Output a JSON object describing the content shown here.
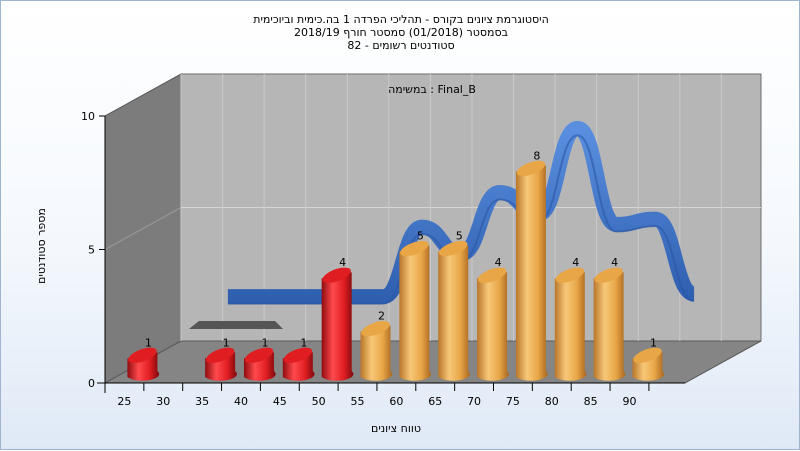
{
  "title_lines": [
    "היסטוגרמת ציונים בקורס - תהליכי הפרדה 1 בה.כימית וביוכימית",
    "בסמסטר  (01/2018)  סמסטר חורף 2018/19",
    "סטודנטים רשומים - 82"
  ],
  "chart_data": {
    "type": "bar",
    "inner_label": "במשימה : Final_B",
    "xlabel": "טווח ציונים",
    "ylabel": "מספר סטודנטים",
    "x_ticks": [
      "25",
      "30",
      "35",
      "40",
      "45",
      "50",
      "55",
      "60",
      "65",
      "70",
      "75",
      "80",
      "85",
      "90"
    ],
    "y_ticks": [
      "0",
      "5",
      "10"
    ],
    "ylim": [
      0,
      10
    ],
    "grid": true,
    "categories": [
      "25",
      "30",
      "35",
      "40",
      "45",
      "50",
      "55",
      "60",
      "65",
      "70",
      "75",
      "80",
      "85",
      "90"
    ],
    "values": [
      1,
      0,
      1,
      1,
      1,
      4,
      2,
      5,
      5,
      4,
      8,
      4,
      4,
      1
    ],
    "value_labels": [
      "1",
      "",
      "1",
      "1",
      "1",
      "4",
      "2",
      "5",
      "5",
      "4",
      "8",
      "4",
      "4",
      "1"
    ],
    "colors": {
      "fail_bar": "#e01e22",
      "pass_bar": "#e8a647",
      "distribution_curve": "#3a6fc4",
      "back_wall": "#b6b6b6",
      "side_wall": "#7c7c7c",
      "floor": "#858585"
    },
    "pass_threshold": "55",
    "curve_values": [
      null,
      1.9,
      1.9,
      1.9,
      1.9,
      1.9,
      4.5,
      3.5,
      5.8,
      5.0,
      8.2,
      4.6,
      4.8,
      2.0
    ]
  }
}
